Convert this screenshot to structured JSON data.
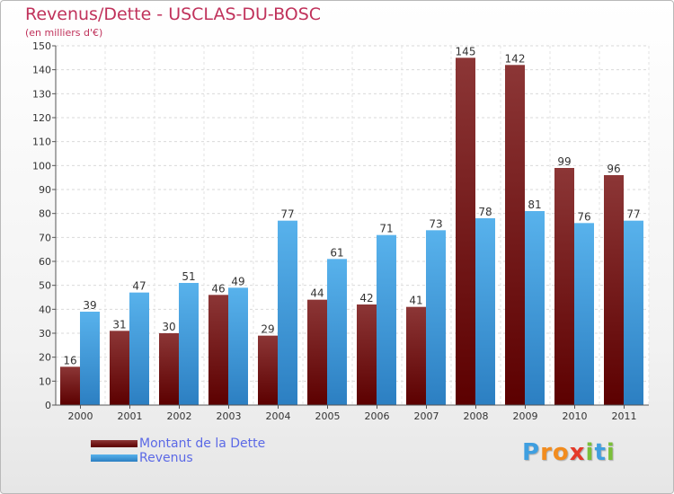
{
  "title": "Revenus/Dette - USCLAS-DU-BOSC",
  "subtitle": "(en milliers d'€)",
  "legend": {
    "debt": "Montant de la Dette",
    "revenue": "Revenus"
  },
  "logo": "Proxiti",
  "colors": {
    "title": "#c0325b",
    "legend_text": "#5b69e6",
    "debt": "#7a1414",
    "revenue": "#3f9fe0"
  },
  "chart_data": {
    "type": "bar",
    "categories": [
      "2000",
      "2001",
      "2002",
      "2003",
      "2004",
      "2005",
      "2006",
      "2007",
      "2008",
      "2009",
      "2010",
      "2011"
    ],
    "series": [
      {
        "name": "Montant de la Dette",
        "values": [
          16,
          31,
          30,
          46,
          29,
          44,
          42,
          41,
          145,
          142,
          99,
          96
        ]
      },
      {
        "name": "Revenus",
        "values": [
          39,
          47,
          51,
          49,
          77,
          61,
          71,
          73,
          78,
          81,
          76,
          77
        ]
      }
    ],
    "yticks": [
      0,
      10,
      20,
      30,
      40,
      50,
      60,
      70,
      80,
      90,
      100,
      110,
      120,
      130,
      140,
      150
    ],
    "ylim": [
      0,
      150
    ],
    "grid": true,
    "legend_position": "bottom-left"
  }
}
